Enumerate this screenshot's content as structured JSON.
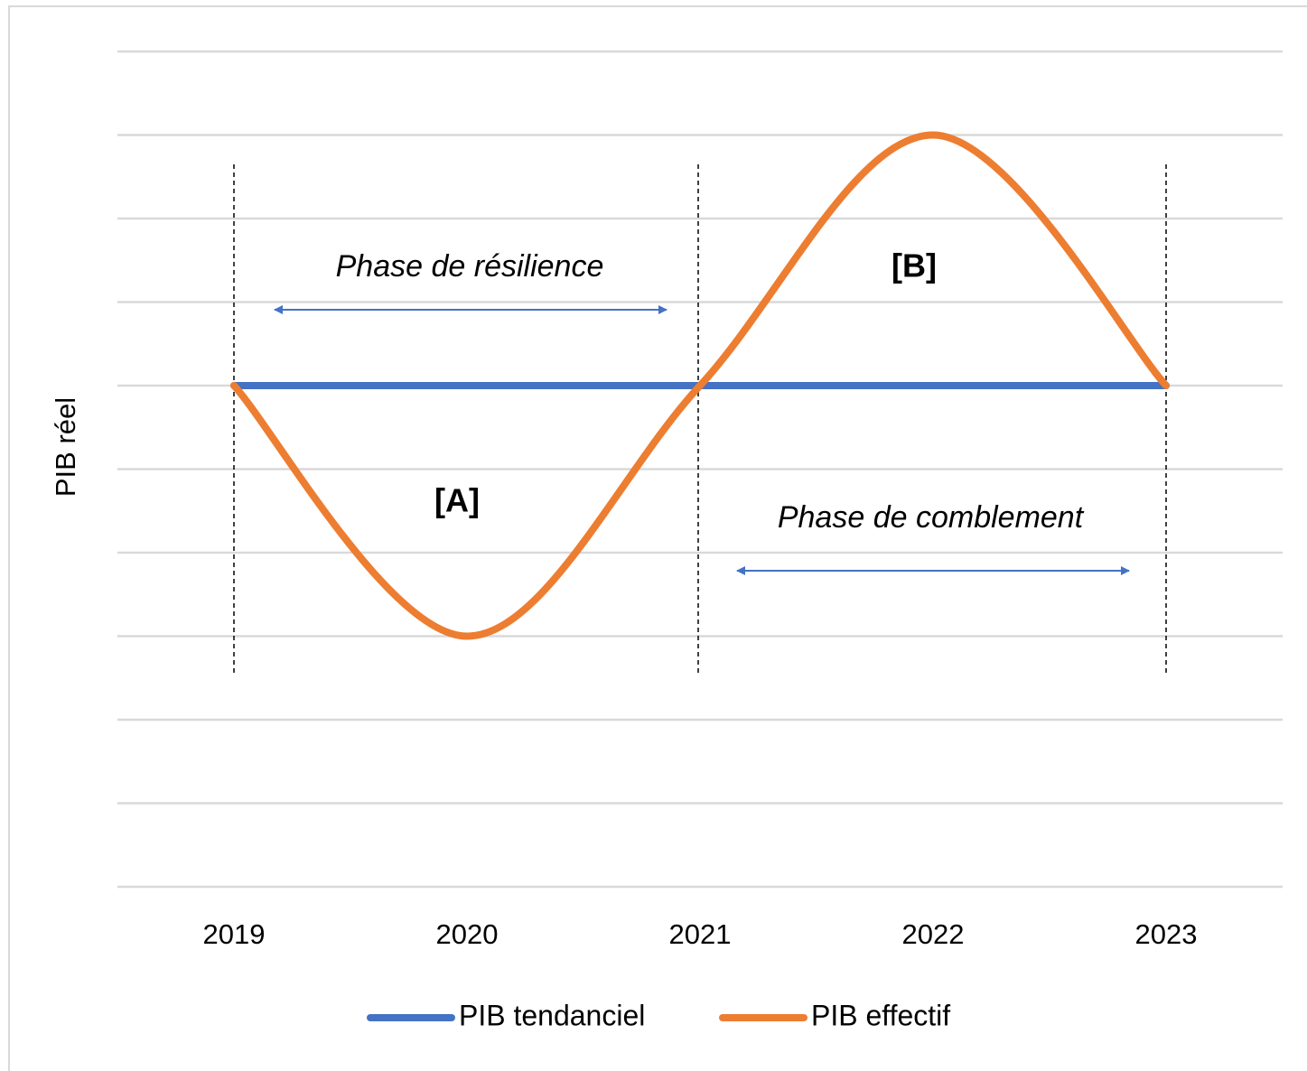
{
  "chart_data": {
    "type": "line",
    "y_label": "PIB  réel",
    "categories": [
      "2019",
      "2020",
      "2021",
      "2022",
      "2023"
    ],
    "series": [
      {
        "name": "PIB tendanciel",
        "color": "#4472c4",
        "values": [
          6,
          6,
          6,
          6,
          6
        ]
      },
      {
        "name": "PIB effectif",
        "color": "#ed7d31",
        "values": [
          6,
          3,
          6,
          9,
          6
        ]
      }
    ],
    "smooth": [
      false,
      true
    ],
    "ylim": [
      0,
      10
    ],
    "yticks": [
      0,
      1,
      2,
      3,
      4,
      5,
      6,
      7,
      8,
      9,
      10
    ],
    "grid": true,
    "legend": "bottom",
    "annotations": [
      "Phase de résilience",
      "[B]",
      "[A]",
      "Phase de comblement"
    ]
  }
}
